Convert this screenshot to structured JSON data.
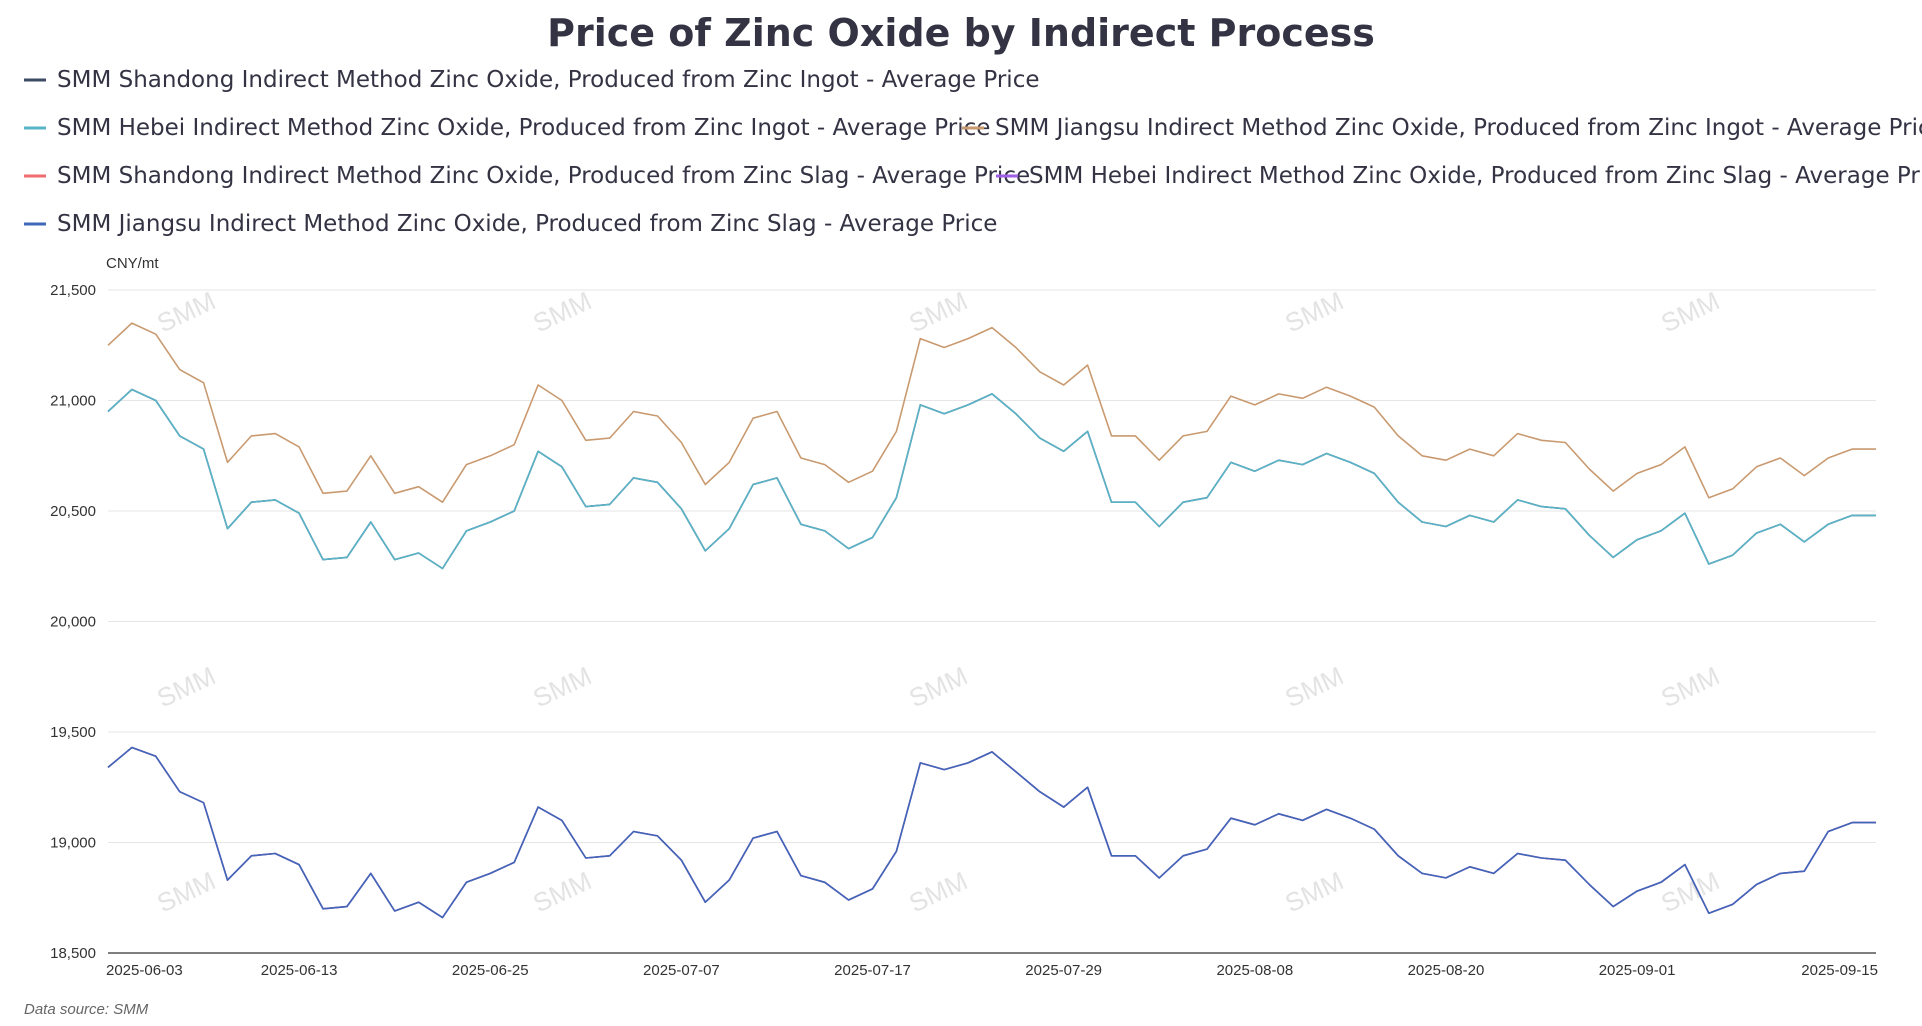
{
  "chart_data": {
    "type": "line",
    "title": "Price of Zinc Oxide by Indirect Process",
    "unit": "CNY/mt",
    "source": "Data source:  SMM",
    "watermark": "SMM",
    "ylim": [
      18500,
      21500
    ],
    "yticks": [
      18500,
      19000,
      19500,
      20000,
      20500,
      21000,
      21500
    ],
    "ytick_labels": [
      "18,500",
      "19,000",
      "19,500",
      "20,000",
      "20,500",
      "21,000",
      "21,500"
    ],
    "x": [
      "2025-06-03",
      "2025-06-04",
      "2025-06-05",
      "2025-06-06",
      "2025-06-09",
      "2025-06-10",
      "2025-06-11",
      "2025-06-12",
      "2025-06-13",
      "2025-06-16",
      "2025-06-17",
      "2025-06-18",
      "2025-06-19",
      "2025-06-20",
      "2025-06-23",
      "2025-06-24",
      "2025-06-25",
      "2025-06-26",
      "2025-06-27",
      "2025-06-30",
      "2025-07-01",
      "2025-07-02",
      "2025-07-03",
      "2025-07-04",
      "2025-07-07",
      "2025-07-08",
      "2025-07-09",
      "2025-07-10",
      "2025-07-11",
      "2025-07-14",
      "2025-07-15",
      "2025-07-16",
      "2025-07-17",
      "2025-07-18",
      "2025-07-21",
      "2025-07-22",
      "2025-07-23",
      "2025-07-24",
      "2025-07-25",
      "2025-07-28",
      "2025-07-29",
      "2025-07-30",
      "2025-07-31",
      "2025-08-01",
      "2025-08-04",
      "2025-08-05",
      "2025-08-06",
      "2025-08-07",
      "2025-08-08",
      "2025-08-11",
      "2025-08-12",
      "2025-08-13",
      "2025-08-14",
      "2025-08-15",
      "2025-08-18",
      "2025-08-19",
      "2025-08-20",
      "2025-08-21",
      "2025-08-22",
      "2025-08-25",
      "2025-08-26",
      "2025-08-27",
      "2025-08-28",
      "2025-08-29",
      "2025-09-01",
      "2025-09-02",
      "2025-09-03",
      "2025-09-04",
      "2025-09-05",
      "2025-09-08",
      "2025-09-09",
      "2025-09-10",
      "2025-09-11",
      "2025-09-12",
      "2025-09-15"
    ],
    "xtick_labels": [
      "2025-06-03",
      "2025-06-13",
      "2025-06-25",
      "2025-07-07",
      "2025-07-17",
      "2025-07-29",
      "2025-08-08",
      "2025-08-20",
      "2025-09-01",
      "2025-09-15"
    ],
    "series": [
      {
        "name": "SMM Shandong Indirect Method Zinc Oxide, Produced from Zinc Ingot - Average Price",
        "color": "#3d4a66",
        "values": [
          20950,
          21050,
          21000,
          20840,
          20780,
          20420,
          20540,
          20550,
          20490,
          20280,
          20290,
          20450,
          20280,
          20310,
          20240,
          20410,
          20450,
          20500,
          20770,
          20700,
          20520,
          20530,
          20650,
          20630,
          20510,
          20320,
          20420,
          20620,
          20650,
          20440,
          20410,
          20330,
          20380,
          20560,
          20980,
          20940,
          20980,
          21030,
          20940,
          20830,
          20770,
          20860,
          20540,
          20540,
          20430,
          20540,
          20560,
          20720,
          20680,
          20730,
          20710,
          20760,
          20720,
          20670,
          20540,
          20450,
          20430,
          20480,
          20450,
          20550,
          20520,
          20510,
          20390,
          20290,
          20370,
          20410,
          20490,
          20260,
          20300,
          20400,
          20440,
          20360,
          20440,
          20480,
          20480
        ]
      },
      {
        "name": "SMM Hebei Indirect Method Zinc Oxide, Produced from Zinc Ingot - Average Price",
        "color": "#5ab4c8",
        "values": [
          20950,
          21050,
          21000,
          20840,
          20780,
          20420,
          20540,
          20550,
          20490,
          20280,
          20290,
          20450,
          20280,
          20310,
          20240,
          20410,
          20450,
          20500,
          20770,
          20700,
          20520,
          20530,
          20650,
          20630,
          20510,
          20320,
          20420,
          20620,
          20650,
          20440,
          20410,
          20330,
          20380,
          20560,
          20980,
          20940,
          20980,
          21030,
          20940,
          20830,
          20770,
          20860,
          20540,
          20540,
          20430,
          20540,
          20560,
          20720,
          20680,
          20730,
          20710,
          20760,
          20720,
          20670,
          20540,
          20450,
          20430,
          20480,
          20450,
          20550,
          20520,
          20510,
          20390,
          20290,
          20370,
          20410,
          20490,
          20260,
          20300,
          20400,
          20440,
          20360,
          20440,
          20480,
          20480
        ]
      },
      {
        "name": "SMM Jiangsu Indirect Method Zinc Oxide, Produced from Zinc Ingot - Average Price",
        "color": "#c99a70",
        "values": [
          21250,
          21350,
          21300,
          21140,
          21080,
          20720,
          20840,
          20850,
          20790,
          20580,
          20590,
          20750,
          20580,
          20610,
          20540,
          20710,
          20750,
          20800,
          21070,
          21000,
          20820,
          20830,
          20950,
          20930,
          20810,
          20620,
          20720,
          20920,
          20950,
          20740,
          20710,
          20630,
          20680,
          20860,
          21280,
          21240,
          21280,
          21330,
          21240,
          21130,
          21070,
          21160,
          20840,
          20840,
          20730,
          20840,
          20860,
          21020,
          20980,
          21030,
          21010,
          21060,
          21020,
          20970,
          20840,
          20750,
          20730,
          20780,
          20750,
          20850,
          20820,
          20810,
          20690,
          20590,
          20670,
          20710,
          20790,
          20560,
          20600,
          20700,
          20740,
          20660,
          20740,
          20780,
          20780
        ]
      },
      {
        "name": "SMM Shandong Indirect Method Zinc Oxide, Produced from Zinc Slag - Average Price",
        "color": "#f06b6b",
        "values": [
          19340,
          19430,
          19390,
          19230,
          19180,
          18830,
          18940,
          18950,
          18900,
          18700,
          18710,
          18860,
          18690,
          18730,
          18660,
          18820,
          18860,
          18910,
          19160,
          19100,
          18930,
          18940,
          19050,
          19030,
          18920,
          18730,
          18830,
          19020,
          19050,
          18850,
          18820,
          18740,
          18790,
          18960,
          19360,
          19330,
          19360,
          19410,
          19320,
          19230,
          19160,
          19250,
          18940,
          18940,
          18840,
          18940,
          18970,
          19110,
          19080,
          19130,
          19100,
          19150,
          19110,
          19060,
          18940,
          18860,
          18840,
          18890,
          18860,
          18950,
          18930,
          18920,
          18810,
          18710,
          18780,
          18820,
          18900,
          18680,
          18720,
          18810,
          18860,
          18870,
          19050,
          19090,
          19090
        ]
      },
      {
        "name": "SMM Hebei Indirect Method Zinc Oxide, Produced from Zinc Slag - Average Price",
        "color": "#a05ee6",
        "values": [
          19340,
          19430,
          19390,
          19230,
          19180,
          18830,
          18940,
          18950,
          18900,
          18700,
          18710,
          18860,
          18690,
          18730,
          18660,
          18820,
          18860,
          18910,
          19160,
          19100,
          18930,
          18940,
          19050,
          19030,
          18920,
          18730,
          18830,
          19020,
          19050,
          18850,
          18820,
          18740,
          18790,
          18960,
          19360,
          19330,
          19360,
          19410,
          19320,
          19230,
          19160,
          19250,
          18940,
          18940,
          18840,
          18940,
          18970,
          19110,
          19080,
          19130,
          19100,
          19150,
          19110,
          19060,
          18940,
          18860,
          18840,
          18890,
          18860,
          18950,
          18930,
          18920,
          18810,
          18710,
          18780,
          18820,
          18900,
          18680,
          18720,
          18810,
          18860,
          18870,
          19050,
          19090,
          19090
        ]
      },
      {
        "name": "SMM Jiangsu Indirect Method Zinc Oxide, Produced from Zinc Slag - Average Price",
        "color": "#3f67b8",
        "values": [
          19340,
          19430,
          19390,
          19230,
          19180,
          18830,
          18940,
          18950,
          18900,
          18700,
          18710,
          18860,
          18690,
          18730,
          18660,
          18820,
          18860,
          18910,
          19160,
          19100,
          18930,
          18940,
          19050,
          19030,
          18920,
          18730,
          18830,
          19020,
          19050,
          18850,
          18820,
          18740,
          18790,
          18960,
          19360,
          19330,
          19360,
          19410,
          19320,
          19230,
          19160,
          19250,
          18940,
          18940,
          18840,
          18940,
          18970,
          19110,
          19080,
          19130,
          19100,
          19150,
          19110,
          19060,
          18940,
          18860,
          18840,
          18890,
          18860,
          18950,
          18930,
          18920,
          18810,
          18710,
          18780,
          18820,
          18900,
          18680,
          18720,
          18810,
          18860,
          18870,
          19050,
          19090,
          19090
        ]
      }
    ],
    "legend_position": "top",
    "grid": true
  }
}
